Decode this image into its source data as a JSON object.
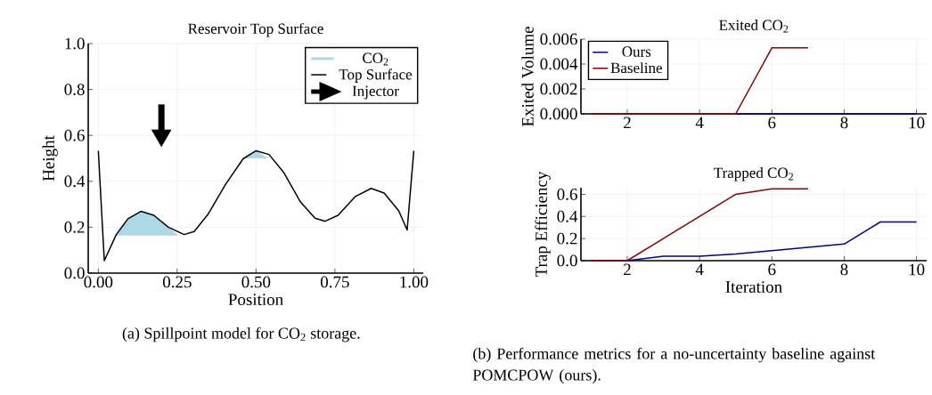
{
  "chart_data": [
    {
      "type": "line",
      "title": "Reservoir Top Surface",
      "xlabel": "Position",
      "ylabel": "Height",
      "xlim": [
        -0.032,
        1.03
      ],
      "ylim": [
        0,
        1.0
      ],
      "xticks": [
        {
          "value": 0,
          "label": "0.00"
        },
        {
          "value": 0.25,
          "label": "0.25"
        },
        {
          "value": 0.5,
          "label": "0.50"
        },
        {
          "value": 0.75,
          "label": "0.75"
        },
        {
          "value": 1.0,
          "label": "1.00"
        }
      ],
      "yticks": [
        {
          "value": 0,
          "label": "0.0"
        },
        {
          "value": 0.2,
          "label": "0.2"
        },
        {
          "value": 0.4,
          "label": "0.4"
        },
        {
          "value": 0.6,
          "label": "0.6"
        },
        {
          "value": 0.8,
          "label": "0.8"
        },
        {
          "value": 1.0,
          "label": "1.0"
        }
      ],
      "grid": true,
      "legend": "top right",
      "series": [
        {
          "name": "CO$_{2}$",
          "type": "area",
          "color": "#add8e6",
          "x": [
            0.057,
            0.094,
            0.135,
            0.176,
            0.222,
            0.254,
            0.057,
            null,
            0.466,
            0.5,
            0.539,
            0.466
          ],
          "values": [
            0.168,
            0.237,
            0.269,
            0.252,
            0.2,
            0.164,
            0.164,
            null,
            0.5,
            0.533,
            0.5,
            0.5
          ]
        },
        {
          "name": "Top Surface",
          "type": "line",
          "color": "#000000",
          "x": [
            0,
            0.019,
            0.057,
            0.094,
            0.135,
            0.176,
            0.222,
            0.272,
            0.304,
            0.349,
            0.404,
            0.459,
            0.5,
            0.541,
            0.587,
            0.641,
            0.687,
            0.719,
            0.76,
            0.815,
            0.865,
            0.906,
            0.952,
            0.979,
            1.0
          ],
          "values": [
            0.533,
            0.054,
            0.168,
            0.237,
            0.269,
            0.252,
            0.2,
            0.168,
            0.181,
            0.259,
            0.388,
            0.498,
            0.533,
            0.517,
            0.44,
            0.31,
            0.239,
            0.226,
            0.252,
            0.334,
            0.369,
            0.349,
            0.272,
            0.188,
            0.533
          ]
        },
        {
          "name": "Injector",
          "type": "line",
          "marker": "triangle",
          "color": "#000000",
          "x": [
            0.2,
            0.2
          ],
          "values": [
            0.735,
            0.6
          ]
        }
      ],
      "annotations": [
        "(a) Spillpoint model for CO$_{2}$ storage."
      ]
    },
    {
      "type": "line",
      "title": "Exited CO$_{2}$",
      "ylabel": "Exited Volume",
      "xlim": [
        0.72,
        10.28
      ],
      "ylim": [
        0,
        0.006
      ],
      "xticks": [
        2,
        4,
        6,
        8,
        10
      ],
      "yticks": [
        {
          "value": 0,
          "label": "0.000"
        },
        {
          "value": 0.002,
          "label": "0.002"
        },
        {
          "value": 0.004,
          "label": "0.004"
        },
        {
          "value": 0.006,
          "label": "0.006"
        }
      ],
      "grid": true,
      "legend": "top left",
      "series": [
        {
          "name": "Ours",
          "color": "#00008b",
          "x": [
            5,
            6,
            7,
            8,
            9,
            10
          ],
          "values": [
            0,
            0,
            0,
            0,
            0,
            0
          ]
        },
        {
          "name": "Baseline",
          "color": "#8b0000",
          "x": [
            1,
            2,
            3,
            4,
            5,
            6,
            7
          ],
          "values": [
            0,
            0,
            0,
            0,
            0,
            0.0053,
            0.0053
          ]
        }
      ]
    },
    {
      "type": "line",
      "title": "Trapped CO$_{2}$",
      "xlabel": "Iteration",
      "ylabel": "Trap Efficiency",
      "xlim": [
        0.72,
        10.28
      ],
      "ylim": [
        0,
        0.66
      ],
      "xticks": [
        2,
        4,
        6,
        8,
        10
      ],
      "yticks": [
        {
          "value": 0,
          "label": "0.0"
        },
        {
          "value": 0.2,
          "label": "0.2"
        },
        {
          "value": 0.4,
          "label": "0.4"
        },
        {
          "value": 0.6,
          "label": "0.6"
        }
      ],
      "grid": true,
      "series": [
        {
          "color": "#00008b",
          "x": [
            1,
            2,
            3,
            4,
            5,
            6,
            7,
            8,
            9,
            10
          ],
          "values": [
            0,
            0,
            0.04,
            0.04,
            0.06,
            0.09,
            0.12,
            0.15,
            0.35,
            0.35
          ]
        },
        {
          "color": "#8b0000",
          "x": [
            1,
            2,
            3,
            4,
            5,
            6,
            7
          ],
          "values": [
            0,
            0,
            0.2,
            0.4,
            0.6,
            0.65,
            0.65
          ]
        }
      ],
      "annotations": [
        "(b) Performance metrics for a no-uncertainty baseline against POMCPOW (ours)."
      ]
    }
  ]
}
